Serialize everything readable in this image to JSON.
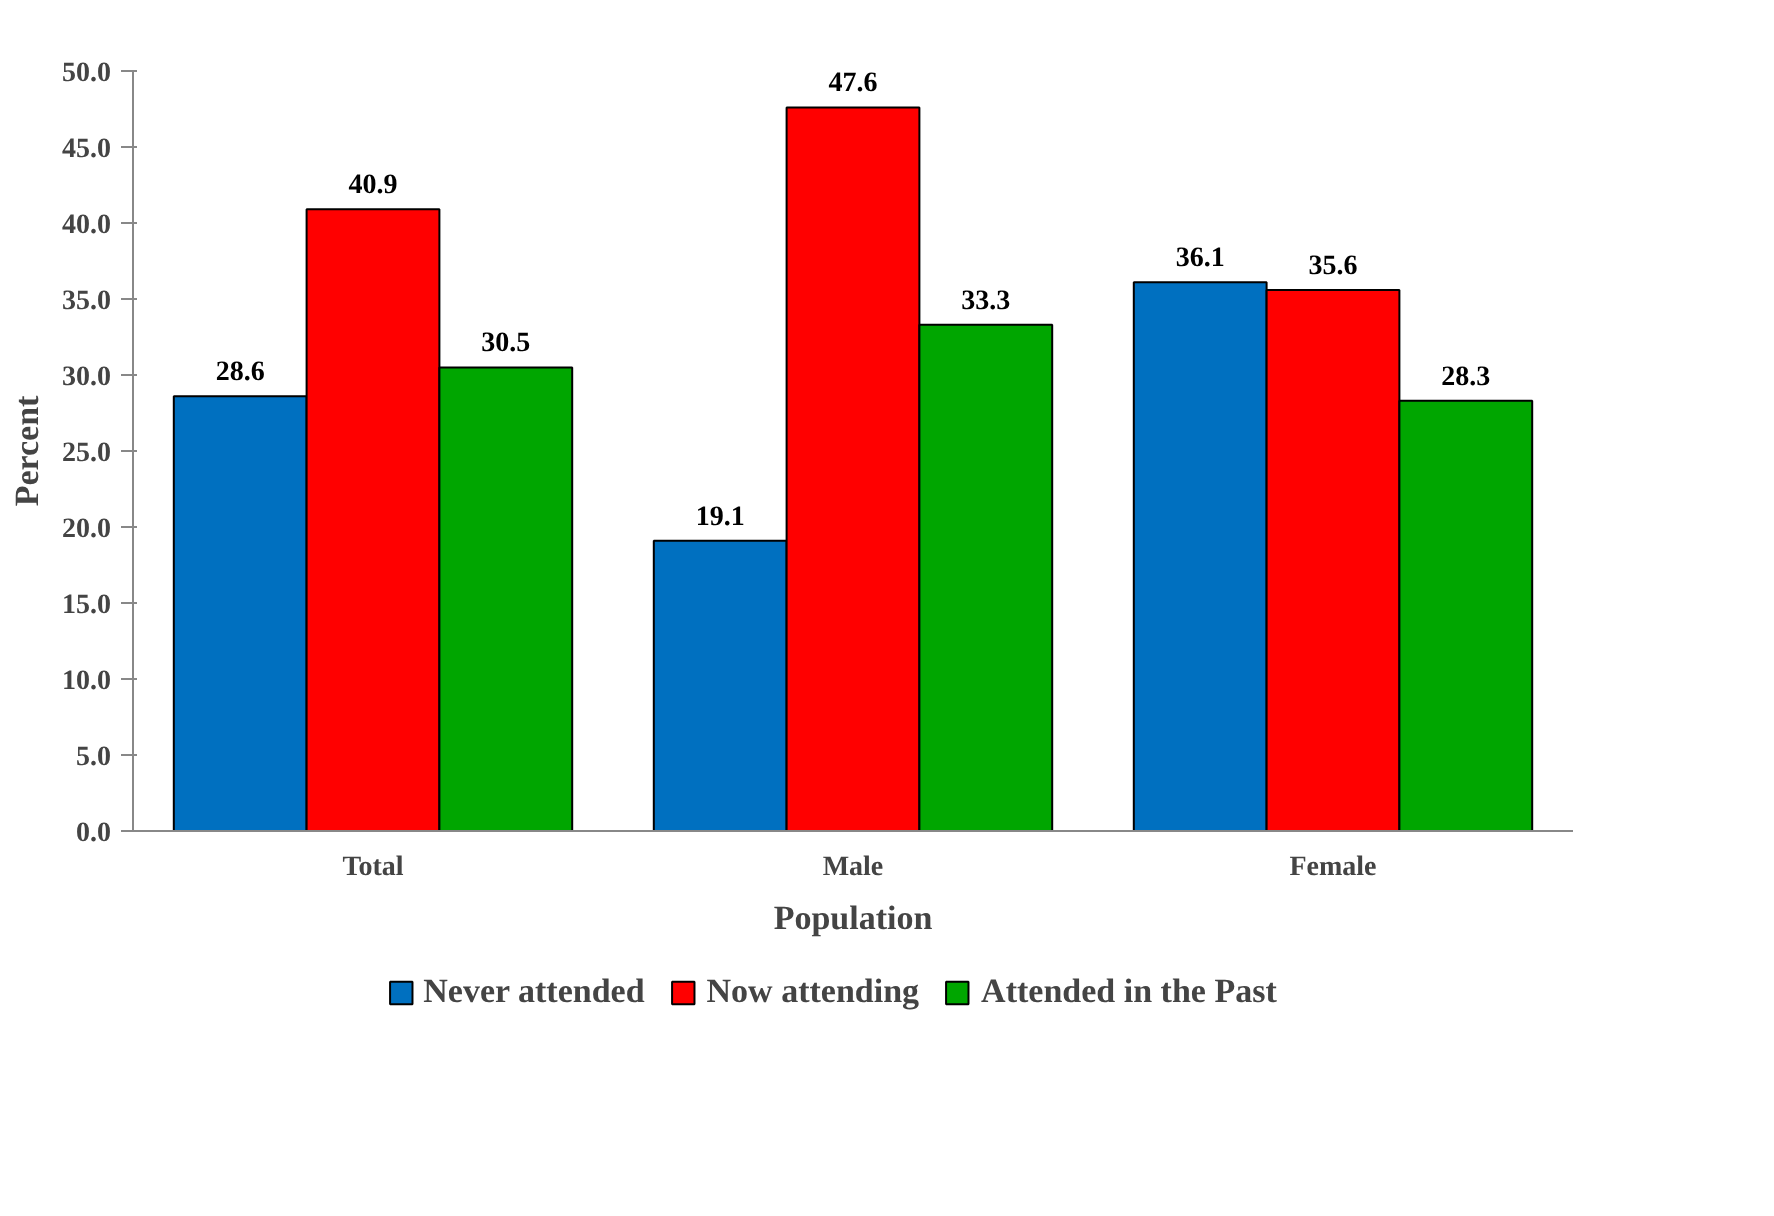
{
  "chart_data": {
    "type": "bar",
    "xlabel": "Population",
    "ylabel": "Percent",
    "categories": [
      "Total",
      "Male",
      "Female"
    ],
    "series": [
      {
        "name": "Never attended",
        "color": "#0070c0",
        "values": [
          28.6,
          19.1,
          36.1
        ]
      },
      {
        "name": "Now attending",
        "color": "#ff0000",
        "values": [
          40.9,
          47.6,
          35.6
        ]
      },
      {
        "name": "Attended in the Past",
        "color": "#00a600",
        "values": [
          30.5,
          33.3,
          28.3
        ]
      }
    ],
    "ylim": [
      0,
      50
    ],
    "yticks": [
      {
        "value": 0,
        "label": "0.0"
      },
      {
        "value": 5,
        "label": "5.0"
      },
      {
        "value": 10,
        "label": "10.0"
      },
      {
        "value": 15,
        "label": "15.0"
      },
      {
        "value": 20,
        "label": "20.0"
      },
      {
        "value": 25,
        "label": "25.0"
      },
      {
        "value": 30,
        "label": "30.0"
      },
      {
        "value": 35,
        "label": "35.0"
      },
      {
        "value": 40,
        "label": "40.0"
      },
      {
        "value": 45,
        "label": "45.0"
      },
      {
        "value": 50,
        "label": "50.0"
      }
    ],
    "data_labels": true,
    "grid": false,
    "legend": "bottom"
  }
}
